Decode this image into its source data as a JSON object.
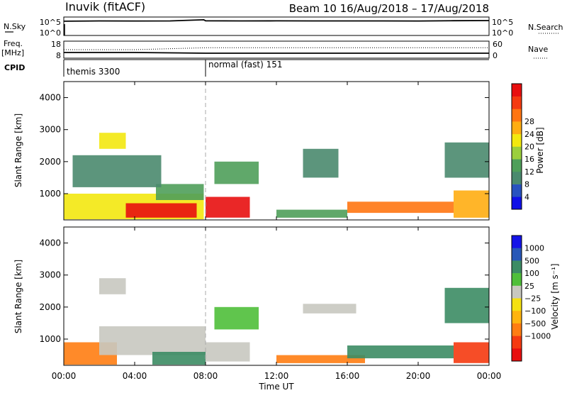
{
  "header": {
    "station": "Inuvik (fitACF)",
    "beam_and_dates": "Beam 10  16/Aug/2018 – 17/Aug/2018"
  },
  "chart_data": [
    {
      "type": "line",
      "panel": "sky-search",
      "left_label": "N.Sky",
      "right_label": "N.Search",
      "left_ticks": [
        "10^5",
        "10^0"
      ],
      "right_ticks": [
        "10^5",
        "10^0"
      ],
      "x": [
        0,
        2,
        4,
        6,
        7.9,
        8,
        10,
        12,
        14,
        16,
        18,
        20,
        22,
        24
      ],
      "series": [
        {
          "name": "N.Sky",
          "values": [
            20000,
            25000,
            24000,
            26000,
            60000,
            28000,
            26000,
            27000,
            25000,
            26000,
            25000,
            24000,
            30000,
            33000
          ]
        }
      ]
    },
    {
      "type": "line",
      "panel": "freq-nave",
      "left_label": "Freq.",
      "left_unit": "[MHz]",
      "right_label": "Nave",
      "left_ticks": [
        "18",
        "8"
      ],
      "right_ticks": [
        "60",
        "0"
      ],
      "x": [
        0,
        4,
        8,
        12,
        16,
        20,
        24
      ],
      "series": [
        {
          "name": "Freq",
          "values": [
            11.0,
            11.0,
            10.5,
            10.5,
            10.5,
            10.5,
            10.5
          ]
        },
        {
          "name": "Nave",
          "values": [
            30,
            30,
            38,
            38,
            38,
            38,
            38
          ]
        }
      ]
    },
    {
      "type": "table",
      "panel": "cpid",
      "label": "CPID",
      "segments": [
        {
          "start": 0,
          "name": "themis 3300"
        },
        {
          "start": 8,
          "name": "normal (fast) 151"
        }
      ]
    },
    {
      "type": "heatmap",
      "panel": "power",
      "ylabel": "Slant Range [km]",
      "y_ticks": [
        "1000",
        "2000",
        "3000",
        "4000"
      ],
      "ylim": [
        180,
        4500
      ],
      "xlim": [
        0,
        24
      ],
      "colorbar_label": "Power [dB]",
      "colorbar_ticks": [
        "4",
        "8",
        "12",
        "16",
        "20",
        "24",
        "28"
      ],
      "colorbar_colors": [
        "#1010e8",
        "#2852c0",
        "#4a8a6e",
        "#4f9f5a",
        "#9bcf3c",
        "#f3e80f",
        "#ffad12",
        "#ff7512",
        "#f53a10",
        "#e80f0f"
      ],
      "regions": [
        {
          "t0": 0.0,
          "t1": 7.9,
          "r0": 200,
          "r1": 1000,
          "level": 16
        },
        {
          "t0": 3.5,
          "t1": 7.5,
          "r0": 250,
          "r1": 700,
          "level": 28
        },
        {
          "t0": 5.2,
          "t1": 7.9,
          "r0": 800,
          "r1": 1300,
          "level": 12
        },
        {
          "t0": 8.0,
          "t1": 10.5,
          "r0": 250,
          "r1": 900,
          "level": 28
        },
        {
          "t0": 16.0,
          "t1": 22.0,
          "r0": 400,
          "r1": 750,
          "level": 24
        },
        {
          "t0": 12.0,
          "t1": 16.0,
          "r0": 250,
          "r1": 500,
          "level": 12
        },
        {
          "t0": 22.0,
          "t1": 24.0,
          "r0": 250,
          "r1": 1100,
          "level": 20
        },
        {
          "t0": 0.5,
          "t1": 5.5,
          "r0": 1200,
          "r1": 2200,
          "level": 8
        },
        {
          "t0": 8.5,
          "t1": 11.0,
          "r0": 1300,
          "r1": 2000,
          "level": 12
        },
        {
          "t0": 13.5,
          "t1": 15.5,
          "r0": 1500,
          "r1": 2400,
          "level": 8
        },
        {
          "t0": 2.0,
          "t1": 3.5,
          "r0": 2400,
          "r1": 2900,
          "level": 16
        },
        {
          "t0": 21.5,
          "t1": 24.0,
          "r0": 1500,
          "r1": 2600,
          "level": 8
        }
      ]
    },
    {
      "type": "heatmap",
      "panel": "velocity",
      "ylabel": "Slant Range [km]",
      "y_ticks": [
        "1000",
        "2000",
        "3000",
        "4000"
      ],
      "ylim": [
        180,
        4500
      ],
      "xlim": [
        0,
        24
      ],
      "xlabel": "Time UT",
      "x_ticks": [
        "00:00",
        "04:00",
        "08:00",
        "12:00",
        "16:00",
        "20:00",
        "00:00"
      ],
      "colorbar_label": "Velocity [m s⁻¹]",
      "colorbar_ticks": [
        "1000",
        "500",
        "100",
        "25",
        "−25",
        "−100",
        "−500",
        "−1000"
      ],
      "colorbar_colors": [
        "#1414e8",
        "#2858b8",
        "#3c8c64",
        "#4fbf3a",
        "#c8c8c0",
        "#f5e112",
        "#ffb40f",
        "#ff7d12",
        "#f53a10",
        "#e80f0f"
      ],
      "regions": [
        {
          "t0": 0.0,
          "t1": 3.0,
          "r0": 200,
          "r1": 900,
          "level": -100
        },
        {
          "t0": 2.0,
          "t1": 8.0,
          "r0": 500,
          "r1": 1400,
          "level": 0
        },
        {
          "t0": 5.0,
          "t1": 8.0,
          "r0": 200,
          "r1": 600,
          "level": 100
        },
        {
          "t0": 8.0,
          "t1": 10.5,
          "r0": 300,
          "r1": 900,
          "level": 0
        },
        {
          "t0": 12.0,
          "t1": 17.0,
          "r0": 250,
          "r1": 500,
          "level": -100
        },
        {
          "t0": 16.0,
          "t1": 22.0,
          "r0": 400,
          "r1": 800,
          "level": 100
        },
        {
          "t0": 22.0,
          "t1": 24.0,
          "r0": 250,
          "r1": 900,
          "level": -500
        },
        {
          "t0": 13.5,
          "t1": 16.5,
          "r0": 1800,
          "r1": 2100,
          "level": 0
        },
        {
          "t0": 8.5,
          "t1": 11.0,
          "r0": 1300,
          "r1": 2000,
          "level": 25
        },
        {
          "t0": 2.0,
          "t1": 3.5,
          "r0": 2400,
          "r1": 2900,
          "level": 0
        },
        {
          "t0": 21.5,
          "t1": 24.0,
          "r0": 1500,
          "r1": 2600,
          "level": 100
        }
      ]
    }
  ]
}
